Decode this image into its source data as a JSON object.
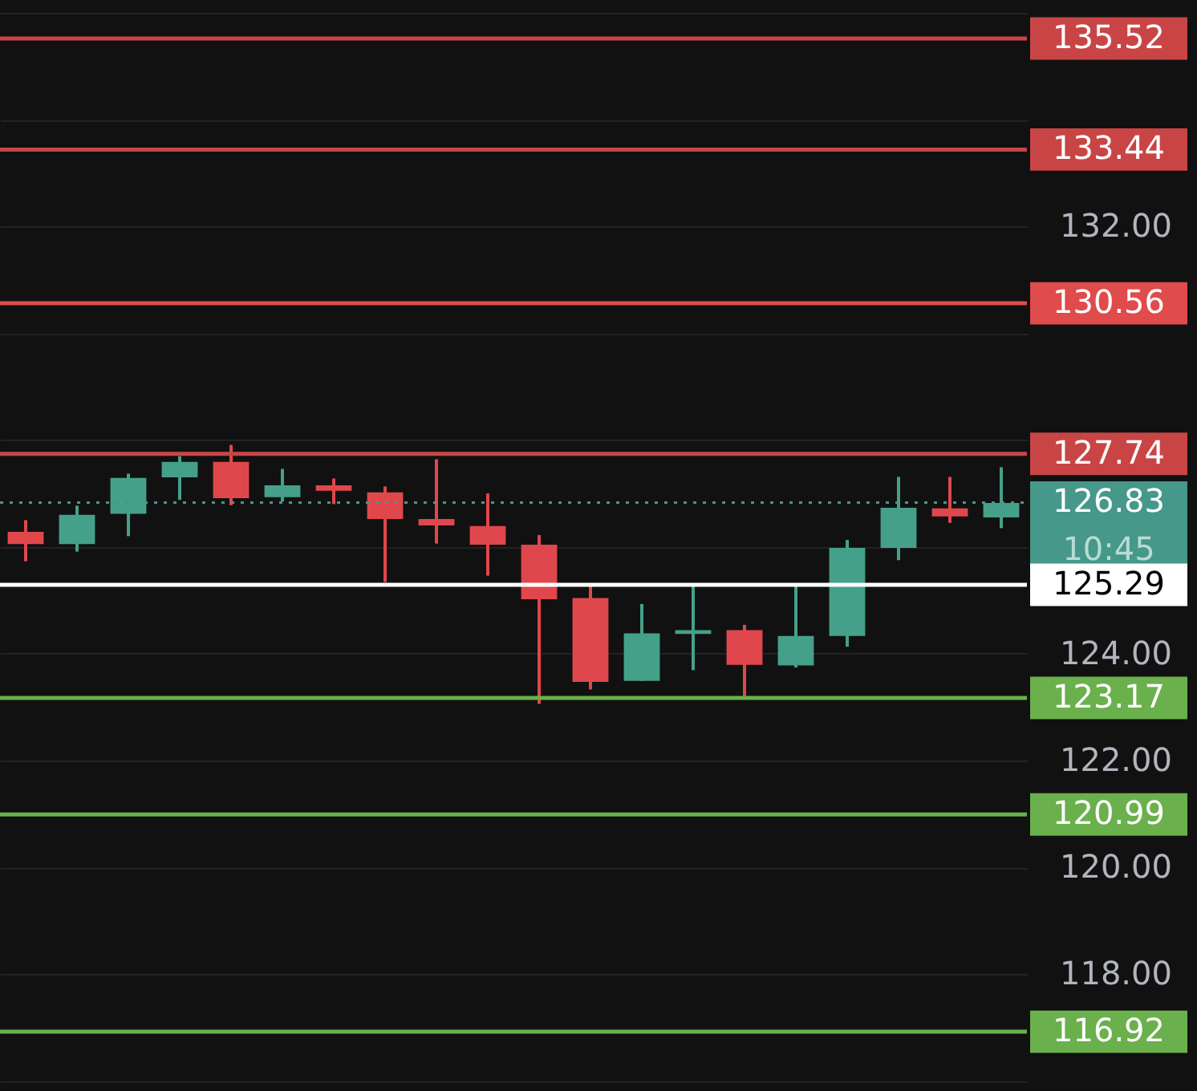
{
  "chart_data": {
    "type": "candlestick",
    "categories": [
      null,
      null,
      null,
      null,
      null,
      null,
      null,
      null,
      null,
      null,
      null,
      null,
      null,
      null,
      null,
      null,
      null,
      null,
      null,
      null
    ],
    "ohlc": [
      [
        126.28,
        126.5,
        125.73,
        126.05
      ],
      [
        126.05,
        126.77,
        125.91,
        126.6
      ],
      [
        126.62,
        127.37,
        126.2,
        127.29
      ],
      [
        127.3,
        127.7,
        126.88,
        127.59
      ],
      [
        127.59,
        127.91,
        126.78,
        126.91
      ],
      [
        126.93,
        127.46,
        126.85,
        127.15
      ],
      [
        127.15,
        127.28,
        126.8,
        127.05
      ],
      [
        127.02,
        127.13,
        125.34,
        126.52
      ],
      [
        126.52,
        127.64,
        126.06,
        126.4
      ],
      [
        126.39,
        127.0,
        125.46,
        126.04
      ],
      [
        126.04,
        126.22,
        123.06,
        125.02
      ],
      [
        125.04,
        125.26,
        123.33,
        123.47
      ],
      [
        123.49,
        124.93,
        123.49,
        124.38
      ],
      [
        124.37,
        125.26,
        123.69,
        124.44
      ],
      [
        124.44,
        124.54,
        123.2,
        123.79
      ],
      [
        123.78,
        125.3,
        123.74,
        124.33
      ],
      [
        124.33,
        126.13,
        124.13,
        125.98
      ],
      [
        125.98,
        127.31,
        125.75,
        126.73
      ],
      [
        126.72,
        127.31,
        126.45,
        126.57
      ],
      [
        126.55,
        127.49,
        126.35,
        126.82
      ]
    ],
    "colors": [
      "#e0474c",
      "#45a08a",
      "#45a08a",
      "#45a08a",
      "#e0474c",
      "#45a08a",
      "#e0474c",
      "#e0474c",
      "#e0474c",
      "#e0474c",
      "#e0474c",
      "#e0474c",
      "#45a08a",
      "#45a08a",
      "#e0474c",
      "#45a08a",
      "#45a08a",
      "#45a08a",
      "#e0474c",
      "#45a08a"
    ],
    "ylim": [
      115.81,
      136.24
    ],
    "yticks": [
      {
        "value": 116,
        "label": null
      },
      {
        "value": 118,
        "label": "118.00"
      },
      {
        "value": 120,
        "label": "120.00"
      },
      {
        "value": 122,
        "label": "122.00"
      },
      {
        "value": 124,
        "label": "124.00"
      },
      {
        "value": 126,
        "label": null
      },
      {
        "value": 128,
        "label": null
      },
      {
        "value": 130,
        "label": null
      },
      {
        "value": 132,
        "label": "132.00"
      },
      {
        "value": 134,
        "label": null
      },
      {
        "value": 136,
        "label": null
      }
    ],
    "tick_labels": "y",
    "grid": "y",
    "ref_lines": [
      {
        "axis": "y",
        "value": 135.52,
        "label": "135.52",
        "color": "#c94545"
      },
      {
        "axis": "y",
        "value": 133.44,
        "label": "133.44",
        "color": "#c94545"
      },
      {
        "axis": "y",
        "value": 130.56,
        "label": "130.56",
        "color": "#e04b4b"
      },
      {
        "axis": "y",
        "value": 127.74,
        "label": "127.74",
        "color": "#c94545"
      },
      {
        "axis": "y",
        "value": 126.83,
        "label": "126.83",
        "color": "#45988a",
        "line_style": "dotted"
      },
      {
        "axis": "y",
        "value": 125.29,
        "label": "125.29",
        "color": "#ffffff"
      },
      {
        "axis": "y",
        "value": 123.17,
        "label": "123.17",
        "color": "#6ab04c"
      },
      {
        "axis": "y",
        "value": 120.99,
        "label": "120.99",
        "color": "#6ab04c"
      },
      {
        "axis": "y",
        "value": 116.92,
        "label": "116.92",
        "color": "#6ab04c"
      }
    ],
    "annotations": [
      "10:45"
    ]
  }
}
